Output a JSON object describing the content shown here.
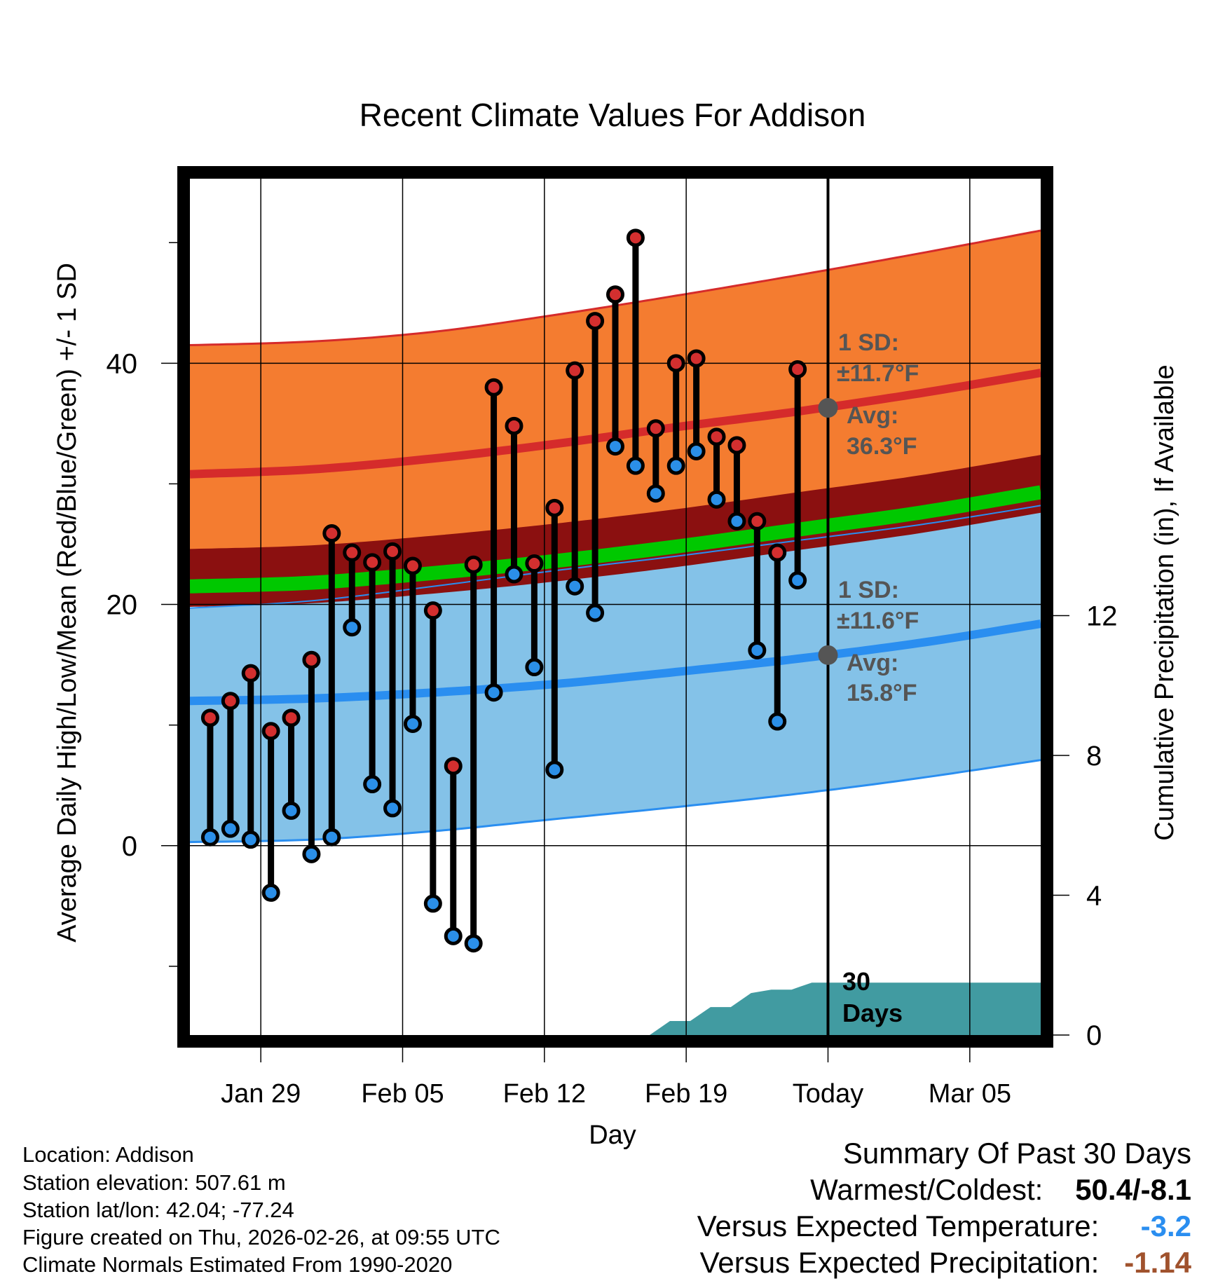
{
  "chart_data": {
    "type": "line",
    "title": "Recent Climate Values For Addison",
    "xlabel": "Day",
    "ylabel": "Average Daily High/Low/Mean (Red/Blue/Green) +/- 1 SD",
    "y2label": "Cumulative Precipitation (in), If Available",
    "ylim": [
      -15.7,
      55.3
    ],
    "y2lim": [
      0,
      24.5
    ],
    "xlim": [
      0,
      42
    ],
    "x_ticks": [
      3.5,
      10.5,
      17.5,
      24.5,
      31.5,
      38.5
    ],
    "x_tick_labels": [
      "Jan 29",
      "Feb 05",
      "Feb 12",
      "Feb 19",
      "Today",
      "Mar 05"
    ],
    "y_ticks": [
      0,
      20,
      40
    ],
    "y_minor_ticks": [
      -10,
      10,
      30,
      50
    ],
    "y2_ticks": [
      0,
      4,
      8,
      12
    ],
    "today_x": 31.5,
    "daily_highs": [
      10.6,
      12.0,
      14.3,
      9.5,
      10.6,
      15.4,
      25.9,
      24.3,
      23.5,
      24.4,
      23.2,
      19.5,
      6.6,
      23.3,
      38.0,
      34.8,
      23.4,
      28.0,
      39.4,
      43.5,
      45.7,
      50.4,
      34.6,
      40.0,
      40.4,
      33.9,
      33.2,
      26.9,
      24.3,
      39.5
    ],
    "daily_lows": [
      0.7,
      1.4,
      0.5,
      -3.9,
      2.9,
      -0.7,
      0.7,
      18.1,
      5.1,
      3.1,
      10.1,
      -4.8,
      -7.5,
      -8.1,
      12.7,
      22.5,
      14.8,
      6.3,
      21.5,
      19.3,
      33.1,
      31.5,
      29.2,
      31.5,
      32.7,
      28.7,
      26.9,
      16.2,
      10.3,
      22.0
    ],
    "normals": {
      "x": [
        0,
        6,
        12,
        18,
        24,
        30,
        36,
        42
      ],
      "high_mean": [
        30.8,
        31.2,
        32.1,
        33.3,
        34.7,
        36.0,
        37.5,
        39.2
      ],
      "high_upper": [
        41.5,
        41.8,
        42.6,
        44.0,
        45.6,
        47.3,
        49.1,
        51.0
      ],
      "high_lower": [
        24.1,
        24.0,
        24.5,
        25.1,
        26.0,
        27.2,
        28.3,
        29.5
      ],
      "mean_mean": [
        21.2,
        21.5,
        22.3,
        23.3,
        24.5,
        25.9,
        27.3,
        29.0
      ],
      "low_mean": [
        12.0,
        12.2,
        12.7,
        13.4,
        14.4,
        15.5,
        16.8,
        18.4
      ],
      "low_upper": [
        19.7,
        20.3,
        21.5,
        22.8,
        24.0,
        25.3,
        26.6,
        28.2
      ],
      "low_lower": [
        0.3,
        0.5,
        1.2,
        2.2,
        3.2,
        4.3,
        5.6,
        7.1
      ]
    },
    "precipitation": {
      "x": [
        22.7,
        23.7,
        24.7,
        25.7,
        26.7,
        27.7,
        28.7,
        29.7,
        30.7,
        42
      ],
      "values": [
        0.0,
        0.4,
        0.4,
        0.8,
        0.8,
        1.2,
        1.3,
        1.3,
        1.5,
        1.5
      ]
    },
    "annotations": {
      "high_sd": "1 SD:",
      "high_sd_value": "±11.7°F",
      "high_avg": "Avg:",
      "high_avg_value": "36.3°F",
      "high_avg_point": 36.3,
      "low_sd": "1 SD:",
      "low_sd_value": "±11.6°F",
      "low_avg": "Avg:",
      "low_avg_value": "15.8°F",
      "low_avg_point": 15.8,
      "days_a": "30",
      "days_b": "Days"
    },
    "colors": {
      "high_band": "#f47c30",
      "high_mean_line": "#d52b2b",
      "low_band": "#84c2e8",
      "low_mean_line": "#2a8ef0",
      "mean_band": "#8b1010",
      "mean_line": "#00c800",
      "high_dot": "#d32f2f",
      "low_dot": "#2b8fe8",
      "precip": "#419ba1",
      "annotation": "#555555"
    }
  },
  "footer": {
    "location": "Location: Addison",
    "elevation": "Station elevation: 507.61 m",
    "latlon": "Station lat/lon: 42.04; -77.24",
    "created": "Figure created on Thu, 2026-02-26, at 09:55 UTC",
    "normals": "Climate Normals Estimated From 1990-2020"
  },
  "summary": {
    "title": "Summary Of Past 30 Days",
    "warmest_label": "Warmest/Coldest:",
    "warmest_value": "50.4/-8.1",
    "temp_label": "Versus Expected Temperature:",
    "temp_value": "-3.2",
    "temp_color": "#2a8ef0",
    "precip_label": "Versus Expected Precipitation:",
    "precip_value": "-1.14",
    "precip_color": "#a0522d"
  }
}
